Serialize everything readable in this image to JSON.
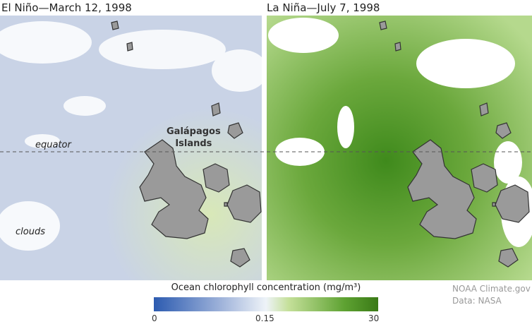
{
  "panels": [
    {
      "title": "El Niño—March 12, 1998"
    },
    {
      "title": "La Niña—July 7, 1998"
    }
  ],
  "labels": {
    "equator": "equator",
    "islands": "Galápagos\nIslands",
    "clouds": "clouds"
  },
  "legend": {
    "title": "Ocean chlorophyll concentration (mg/m³)",
    "ticks": [
      0,
      0.15,
      30
    ]
  },
  "credits": [
    "NOAA Climate.gov",
    "Data: NASA"
  ]
}
